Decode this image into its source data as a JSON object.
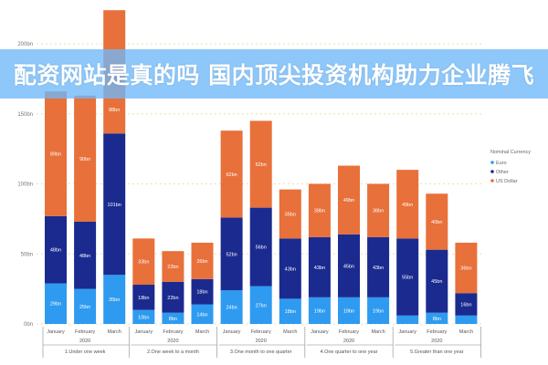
{
  "banner": {
    "text": "配资网站是真的吗 国内顶尖投资机构助力企业腾飞"
  },
  "chart_data": {
    "type": "bar",
    "stacked": true,
    "ylim": [
      0,
      230
    ],
    "yticks": [
      0,
      50,
      100,
      150,
      200
    ],
    "ytick_labels": [
      "0bn",
      "50bn",
      "100bn",
      "150bn",
      "200bn"
    ],
    "grid": true,
    "legend": {
      "title": "Nominal Currency",
      "placement": "right",
      "entries": [
        "Euro",
        "Other",
        "US Dollar"
      ]
    },
    "colors": {
      "Euro": "#2e9bf0",
      "Other": "#1b2a8f",
      "US Dollar": "#e8703a"
    },
    "groups": [
      {
        "label": "1.Under one week",
        "year": "2020",
        "months": [
          "January",
          "February",
          "March"
        ]
      },
      {
        "label": "2.One week to a month",
        "year": "2020",
        "months": [
          "January",
          "February",
          "March"
        ]
      },
      {
        "label": "3.One month to one quarter",
        "year": "2020",
        "months": [
          "January",
          "February",
          "March"
        ]
      },
      {
        "label": "4.One quarter to one year",
        "year": "2020",
        "months": [
          "January",
          "February",
          "March"
        ]
      },
      {
        "label": "5.Greater than one year",
        "year": "2020",
        "months": [
          "January",
          "February",
          "March"
        ]
      }
    ],
    "series": [
      {
        "name": "Euro",
        "values": [
          29,
          25,
          35,
          10,
          8,
          14,
          24,
          27,
          18,
          19,
          19,
          19,
          6,
          8,
          6
        ]
      },
      {
        "name": "Other",
        "values": [
          48,
          48,
          101,
          18,
          22,
          18,
          52,
          56,
          43,
          43,
          45,
          43,
          55,
          45,
          16
        ]
      },
      {
        "name": "US Dollar",
        "values": [
          89,
          90,
          88,
          33,
          22,
          26,
          62,
          62,
          35,
          38,
          49,
          38,
          49,
          40,
          36
        ]
      }
    ],
    "data_labels": {
      "Euro": [
        "29bn",
        "25bn",
        "35bn",
        "10bn",
        "8bn",
        "14bn",
        "24bn",
        "27bn",
        "18bn",
        "19bn",
        "19bn",
        "19bn",
        "",
        "8bn",
        ""
      ],
      "Other": [
        "48bn",
        "48bn",
        "101bn",
        "18bn",
        "22bn",
        "18bn",
        "52bn",
        "56bn",
        "43bn",
        "43bn",
        "45bn",
        "43bn",
        "55bn",
        "45bn",
        "16bn"
      ],
      "US Dollar": [
        "89bn",
        "90bn",
        "88bn",
        "33bn",
        "22bn",
        "26bn",
        "62bn",
        "62bn",
        "35bn",
        "38bn",
        "49bn",
        "38bn",
        "49bn",
        "40bn",
        "36bn"
      ]
    }
  }
}
